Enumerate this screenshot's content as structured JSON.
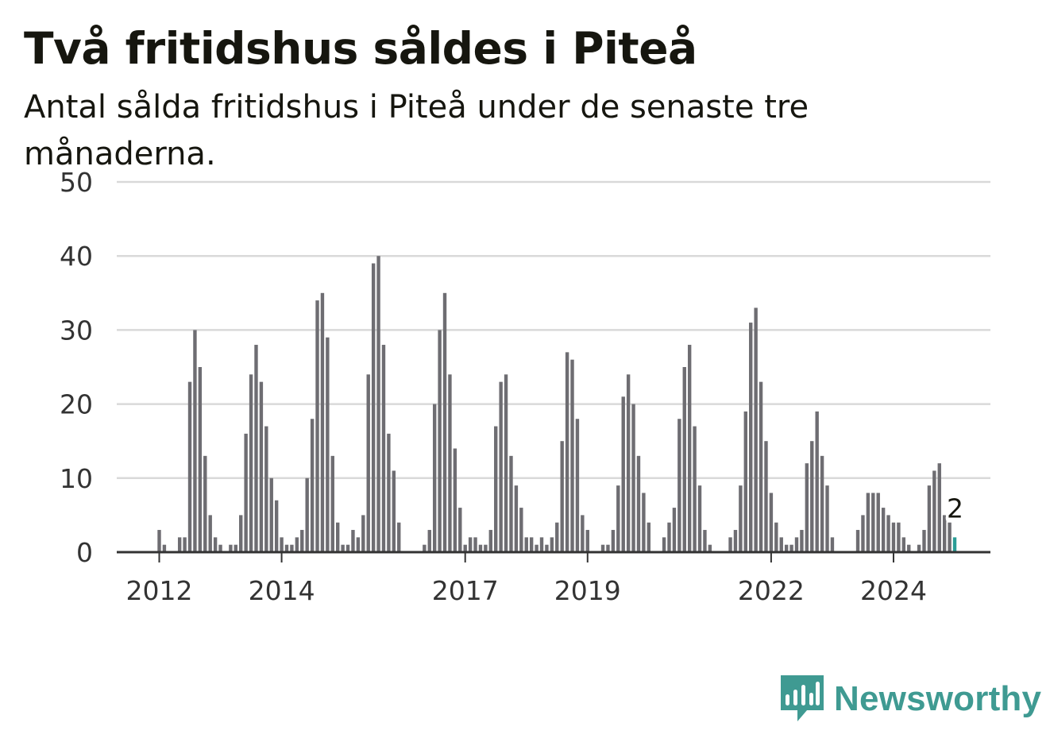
{
  "title": "Två fritidshus såldes i Piteå",
  "subtitle": "Antal sålda fritidshus i Piteå under de senaste tre månaderna.",
  "brand": {
    "name": "Newsworthy",
    "icon": "newsworthy-logo-icon",
    "color": "#3f9a92"
  },
  "colors": {
    "bar": "#6e6d72",
    "highlight": "#2a9d96",
    "grid": "#d9d9d9",
    "axis": "#333333"
  },
  "chart_data": {
    "type": "bar",
    "x_start": "2012-01",
    "x_end": "2024-12",
    "x_tick_labels": [
      {
        "label": "2012",
        "month": "2012-01"
      },
      {
        "label": "2014",
        "month": "2014-01"
      },
      {
        "label": "2017",
        "month": "2017-01"
      },
      {
        "label": "2019",
        "month": "2019-01"
      },
      {
        "label": "2022",
        "month": "2022-01"
      },
      {
        "label": "2024",
        "month": "2024-01"
      }
    ],
    "y_ticks": [
      0,
      10,
      20,
      30,
      40,
      50
    ],
    "ylim": [
      0,
      50
    ],
    "grid": true,
    "values": [
      3,
      1,
      0,
      0,
      2,
      2,
      23,
      30,
      25,
      13,
      5,
      2,
      1,
      0,
      1,
      1,
      5,
      16,
      24,
      28,
      23,
      17,
      10,
      7,
      2,
      1,
      1,
      2,
      3,
      10,
      18,
      34,
      35,
      29,
      13,
      4,
      1,
      1,
      3,
      2,
      5,
      24,
      39,
      40,
      28,
      16,
      11,
      4,
      0,
      0,
      0,
      0,
      1,
      3,
      20,
      30,
      35,
      24,
      14,
      6,
      1,
      2,
      2,
      1,
      1,
      3,
      17,
      23,
      24,
      13,
      9,
      6,
      2,
      2,
      1,
      2,
      1,
      2,
      4,
      15,
      27,
      26,
      18,
      5,
      3,
      0,
      0,
      1,
      1,
      3,
      9,
      21,
      24,
      20,
      13,
      8,
      4,
      0,
      0,
      2,
      4,
      6,
      18,
      25,
      28,
      17,
      9,
      3,
      1,
      0,
      0,
      0,
      2,
      3,
      9,
      19,
      31,
      33,
      23,
      15,
      8,
      4,
      2,
      1,
      1,
      2,
      3,
      12,
      15,
      19,
      13,
      9,
      2,
      0,
      0,
      0,
      0,
      3,
      5,
      8,
      8,
      8,
      6,
      5,
      4,
      4,
      2,
      1,
      0,
      1,
      3,
      9,
      11,
      12,
      5,
      4,
      2
    ],
    "highlight_last": true,
    "annotation": {
      "label": "2",
      "value": 2
    }
  }
}
